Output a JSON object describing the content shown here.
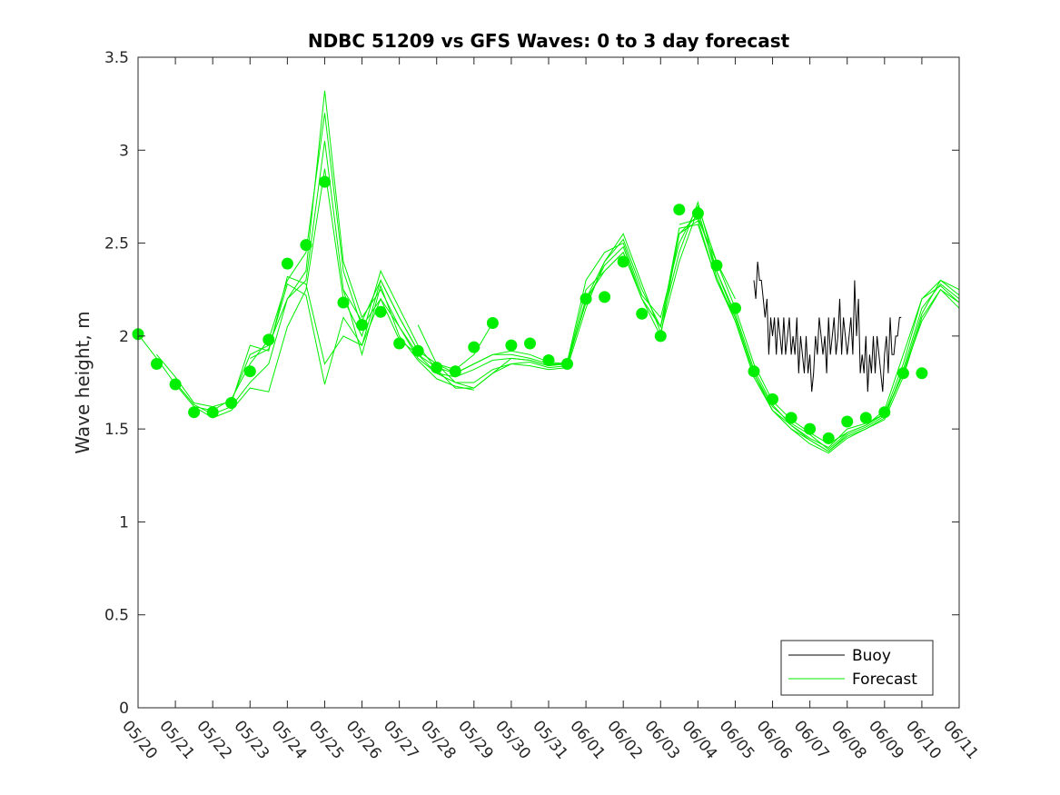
{
  "chart_data": {
    "type": "line",
    "title": "NDBC 51209 vs GFS Waves: 0 to 3 day forecast",
    "xlabel": "",
    "ylabel": "Wave height, m",
    "ylim": [
      0,
      3.5
    ],
    "xlim": [
      "05/20",
      "06/11"
    ],
    "y_ticks": [
      "0",
      "0.5",
      "1",
      "1.5",
      "2",
      "2.5",
      "3",
      "3.5"
    ],
    "x_ticks": [
      "05/20",
      "05/21",
      "05/22",
      "05/23",
      "05/24",
      "05/25",
      "05/26",
      "05/27",
      "05/28",
      "05/29",
      "05/30",
      "05/31",
      "06/01",
      "06/02",
      "06/03",
      "06/04",
      "06/05",
      "06/06",
      "06/07",
      "06/08",
      "06/09",
      "06/10",
      "06/11"
    ],
    "grid": false,
    "legend": {
      "placement": "bottom-right",
      "entries": [
        "Buoy",
        "Forecast"
      ]
    },
    "colors": {
      "buoy": "#000000",
      "forecast": "#00ee00"
    },
    "forecast_dots": {
      "x": [
        0,
        0.5,
        1,
        1.5,
        2,
        2.5,
        3,
        3.5,
        4,
        4.5,
        5,
        5.5,
        6,
        6.5,
        7,
        7.5,
        8,
        8.5,
        9,
        9.5,
        10,
        10.5,
        11,
        11.5,
        12,
        12.5,
        13,
        13.5,
        14,
        14.5,
        15,
        15.5,
        16,
        16.5,
        17,
        17.5,
        18,
        18.5,
        19,
        19.5,
        20,
        20.5,
        21
      ],
      "y": [
        2.01,
        1.85,
        1.74,
        1.59,
        1.59,
        1.64,
        1.81,
        1.98,
        2.39,
        2.49,
        2.83,
        2.18,
        2.06,
        2.13,
        1.96,
        1.92,
        1.83,
        1.81,
        1.94,
        2.07,
        1.95,
        1.96,
        1.87,
        1.85,
        2.2,
        2.21,
        2.4,
        2.12,
        2.0,
        2.68,
        2.66,
        2.38,
        2.15,
        1.81,
        1.66,
        1.56,
        1.5,
        1.45,
        1.54,
        1.56,
        1.59,
        1.8,
        1.8
      ]
    },
    "forecast_runs": [
      {
        "x": [
          0,
          0.5,
          1,
          1.5,
          2,
          2.5,
          3,
          3.5,
          4,
          4.5,
          5,
          5.5,
          6,
          6.5,
          7,
          7.5,
          8,
          8.5,
          9,
          9.5,
          10,
          10.5,
          11,
          11.5,
          12,
          12.5,
          13,
          13.5,
          14,
          14.5,
          15,
          15.5,
          16,
          16.5,
          17,
          17.5,
          18,
          18.5,
          19,
          19.5,
          20,
          20.5,
          21,
          21.5,
          22
        ],
        "y": [
          2.01,
          1.88,
          1.74,
          1.62,
          1.6,
          1.66,
          1.85,
          1.98,
          2.3,
          2.45,
          3.2,
          2.35,
          2.05,
          2.2,
          1.98,
          1.9,
          1.83,
          1.8,
          1.85,
          1.9,
          1.9,
          1.88,
          1.85,
          1.85,
          2.25,
          2.35,
          2.45,
          2.2,
          2.05,
          2.55,
          2.65,
          2.35,
          2.1,
          1.8,
          1.6,
          1.52,
          1.45,
          1.4,
          1.5,
          1.53,
          1.58,
          1.85,
          2.2,
          2.27,
          2.18
        ]
      },
      {
        "x": [
          0.5,
          1,
          1.5,
          2,
          2.5,
          3,
          3.5,
          4,
          4.5,
          5,
          5.5,
          6,
          6.5,
          7,
          7.5,
          8,
          8.5,
          9,
          9.5,
          10,
          10.5,
          11,
          11.5,
          12,
          12.5,
          13,
          13.5,
          14,
          14.5,
          15,
          15.5,
          16,
          16.5,
          17,
          17.5,
          18,
          18.5,
          19,
          19.5,
          20,
          20.5,
          21,
          21.5,
          22
        ],
        "y": [
          1.9,
          1.78,
          1.64,
          1.62,
          1.65,
          1.9,
          1.95,
          2.2,
          2.35,
          3.32,
          2.4,
          2.1,
          2.25,
          2.05,
          1.88,
          1.8,
          1.78,
          1.82,
          1.87,
          1.88,
          1.87,
          1.84,
          1.86,
          2.3,
          2.45,
          2.5,
          2.22,
          2.1,
          2.5,
          2.7,
          2.4,
          2.15,
          1.85,
          1.65,
          1.55,
          1.48,
          1.42,
          1.48,
          1.52,
          1.6,
          1.9,
          2.2,
          2.3,
          2.25
        ]
      },
      {
        "x": [
          1,
          1.5,
          2,
          2.5,
          3,
          3.5,
          4,
          4.5,
          5,
          5.5,
          6,
          6.5,
          7,
          7.5,
          8,
          8.5,
          9,
          9.5,
          10,
          10.5,
          11,
          11.5,
          12,
          12.5,
          13,
          13.5,
          14,
          14.5,
          15,
          15.5,
          16,
          16.5,
          17,
          17.5,
          18,
          18.5,
          19,
          19.5,
          20,
          20.5,
          21,
          21.5,
          22
        ],
        "y": [
          1.75,
          1.63,
          1.58,
          1.62,
          1.75,
          1.85,
          2.2,
          2.3,
          3.05,
          2.25,
          2.08,
          2.3,
          2.1,
          1.92,
          1.85,
          1.75,
          1.75,
          1.82,
          1.85,
          1.86,
          1.83,
          1.84,
          2.2,
          2.4,
          2.52,
          2.25,
          2.05,
          2.45,
          2.72,
          2.35,
          2.12,
          1.82,
          1.63,
          1.52,
          1.44,
          1.38,
          1.46,
          1.5,
          1.56,
          1.82,
          2.15,
          2.28,
          2.2
        ]
      },
      {
        "x": [
          1.5,
          2,
          2.5,
          3,
          3.5,
          4,
          4.5,
          5,
          5.5,
          6,
          6.5,
          7,
          7.5,
          8,
          8.5,
          9,
          9.5,
          10,
          10.5,
          11,
          11.5,
          12,
          12.5,
          13,
          13.5,
          14,
          14.5,
          15,
          15.5,
          16,
          16.5,
          17,
          17.5,
          18,
          18.5,
          19,
          19.5,
          20,
          20.5,
          21,
          21.5,
          22
        ],
        "y": [
          1.62,
          1.56,
          1.6,
          1.72,
          1.7,
          2.05,
          2.25,
          2.9,
          2.2,
          2.0,
          2.35,
          2.15,
          1.95,
          1.82,
          1.72,
          1.72,
          1.8,
          1.85,
          1.84,
          1.82,
          1.83,
          2.15,
          2.4,
          2.55,
          2.28,
          2.02,
          2.4,
          2.68,
          2.32,
          2.08,
          1.78,
          1.6,
          1.5,
          1.42,
          1.37,
          1.45,
          1.5,
          1.55,
          1.78,
          2.1,
          2.25,
          2.15
        ]
      },
      {
        "x": [
          2.5,
          3,
          3.5,
          4,
          4.5,
          5,
          5.5,
          6,
          6.5,
          7,
          7.5,
          8,
          8.5,
          9,
          9.5,
          10,
          10.5,
          11,
          11.5,
          12,
          12.5,
          13,
          13.5,
          14,
          14.5,
          15,
          15.5,
          16,
          16.5,
          17,
          17.5,
          18,
          18.5,
          19,
          19.5,
          20,
          20.5,
          21,
          21.5,
          22
        ],
        "y": [
          1.64,
          1.95,
          1.92,
          2.32,
          2.28,
          1.85,
          2.0,
          1.95,
          2.3,
          2.1,
          1.92,
          1.85,
          1.8,
          1.85,
          1.9,
          1.92,
          1.9,
          1.86,
          1.85,
          2.18,
          2.38,
          2.48,
          2.2,
          2.05,
          2.58,
          2.6,
          2.3,
          2.1,
          1.8,
          1.62,
          1.53,
          1.47,
          1.39,
          1.48,
          1.52,
          1.58,
          1.8,
          2.12,
          2.3,
          2.22
        ]
      },
      {
        "x": [
          3,
          3.5,
          4,
          4.5,
          5,
          5.5,
          6,
          6.5,
          7,
          7.5,
          8,
          8.5,
          9,
          9.5,
          10,
          10.5,
          11,
          11.5,
          12,
          12.5,
          13,
          13.5,
          14,
          14.5,
          15,
          15.5,
          16,
          16.5,
          17,
          17.5,
          18,
          18.5,
          19,
          19.5,
          20,
          20.5,
          21,
          21.5,
          22
        ],
        "y": [
          1.88,
          1.93,
          2.28,
          2.22,
          1.74,
          2.1,
          1.95,
          2.2,
          2.05,
          1.9,
          1.8,
          1.75,
          1.72,
          1.8,
          1.88,
          1.87,
          1.84,
          1.85,
          2.2,
          2.35,
          2.45,
          2.2,
          2.0,
          2.55,
          2.62,
          2.3,
          2.08,
          1.78,
          1.6,
          1.5,
          1.44,
          1.38,
          1.47,
          1.51,
          1.57,
          1.8,
          2.08,
          2.25,
          2.18
        ]
      },
      {
        "x": [
          5.5,
          6,
          6.5,
          7,
          7.5,
          8,
          8.5,
          9
        ],
        "y": [
          2.25,
          1.9,
          2.27,
          2.0,
          1.87,
          1.77,
          1.73,
          1.71
        ]
      },
      {
        "x": [
          7.5,
          8,
          8.5,
          9,
          9.5
        ],
        "y": [
          2.06,
          1.85,
          1.82,
          1.9,
          2.07
        ]
      },
      {
        "x": [
          14.5,
          15,
          15.5,
          16
        ],
        "y": [
          2.6,
          2.63,
          2.4,
          2.2
        ]
      }
    ],
    "buoy": {
      "name": "Buoy",
      "x": [
        16.5,
        16.55,
        16.6,
        16.65,
        16.7,
        16.75,
        16.8,
        16.85,
        16.9,
        16.95,
        17.0,
        17.05,
        17.1,
        17.15,
        17.2,
        17.25,
        17.3,
        17.35,
        17.4,
        17.45,
        17.5,
        17.55,
        17.6,
        17.65,
        17.7,
        17.75,
        17.8,
        17.85,
        17.9,
        17.95,
        18.0,
        18.05,
        18.1,
        18.15,
        18.2,
        18.25,
        18.3,
        18.35,
        18.4,
        18.45,
        18.5,
        18.55,
        18.6,
        18.65,
        18.7,
        18.75,
        18.8,
        18.85,
        18.9,
        18.95,
        19.0,
        19.05,
        19.1,
        19.15,
        19.2,
        19.25,
        19.3,
        19.35,
        19.4,
        19.45,
        19.5,
        19.55,
        19.6,
        19.65,
        19.7,
        19.75,
        19.8,
        19.85,
        19.9,
        19.95,
        20.0,
        20.05,
        20.1,
        20.15,
        20.2,
        20.25,
        20.3,
        20.35,
        20.4,
        20.45
      ],
      "y": [
        2.3,
        2.2,
        2.4,
        2.3,
        2.3,
        2.2,
        2.1,
        2.2,
        1.9,
        2.1,
        2.0,
        2.1,
        1.9,
        2.1,
        2.0,
        1.9,
        2.1,
        1.9,
        2.0,
        2.1,
        1.9,
        2.0,
        1.9,
        2.1,
        1.8,
        2.0,
        1.9,
        1.8,
        2.0,
        1.8,
        1.9,
        1.7,
        1.8,
        2.0,
        1.9,
        2.1,
        2.0,
        1.9,
        2.0,
        1.8,
        2.1,
        1.9,
        2.0,
        2.1,
        1.9,
        2.0,
        2.2,
        1.9,
        2.1,
        2.0,
        1.9,
        2.0,
        2.1,
        1.9,
        2.3,
        2.0,
        2.2,
        1.8,
        1.9,
        1.8,
        2.0,
        1.7,
        1.9,
        1.8,
        2.0,
        1.8,
        2.0,
        1.9,
        1.8,
        1.7,
        1.9,
        2.0,
        1.8,
        2.1,
        1.9,
        1.9,
        2.0,
        2.0,
        2.1,
        2.1
      ]
    }
  }
}
